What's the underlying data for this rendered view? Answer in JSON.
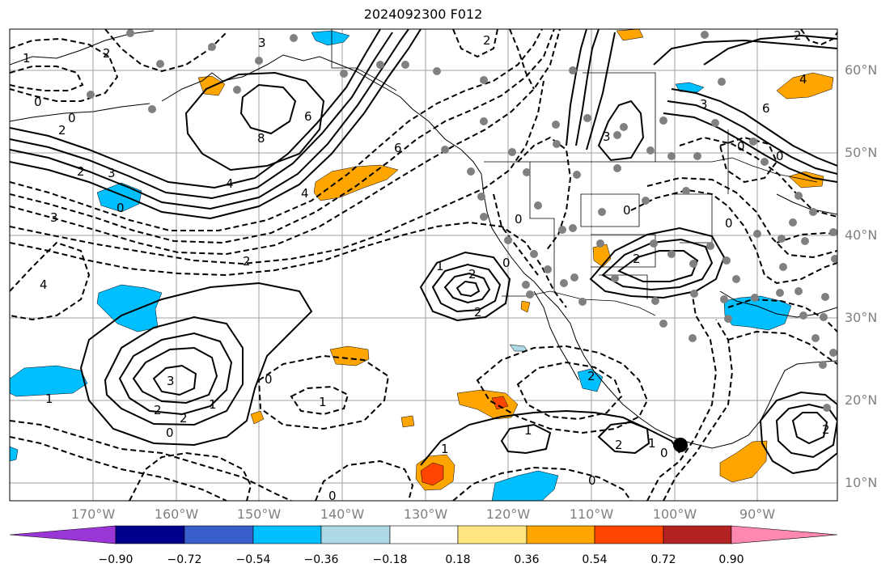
{
  "title": "2024092300 F012",
  "lat_labels": [
    "60°N",
    "50°N",
    "40°N",
    "30°N",
    "20°N",
    "10°N"
  ],
  "lon_labels": [
    "170°W",
    "160°W",
    "150°W",
    "140°W",
    "130°W",
    "120°W",
    "110°W",
    "100°W",
    "90°W"
  ],
  "colorbar": {
    "ticks": [
      "−0.90",
      "−0.72",
      "−0.54",
      "−0.36",
      "−0.18",
      "0.18",
      "0.36",
      "0.54",
      "0.72",
      "0.90"
    ],
    "colors": [
      "#9a36d6",
      "#00008b",
      "#3a5fcd",
      "#00bfff",
      "#add8e6",
      "#ffffff",
      "#ffe680",
      "#ffa500",
      "#ff4500",
      "#b22222",
      "#ff88b0"
    ]
  },
  "contour_labels": {
    "c1": "3",
    "c2": "2",
    "c3": "1",
    "c4": "0",
    "c5": "0",
    "c6": "2",
    "c7": "8",
    "c8": "6",
    "c9": "2",
    "c10": "3",
    "c11": "0",
    "c12": "4",
    "c13": "3",
    "c14": "4",
    "c15": "6",
    "c16": "4",
    "c17": "2",
    "c18": "2",
    "c19": "0",
    "c20": "1",
    "c21": "3",
    "c22": "2",
    "c23": "2",
    "c24": "1",
    "c25": "0",
    "c26": "1",
    "c27": "2",
    "c28": "0",
    "c29": "0",
    "c30": "1",
    "c31": "2",
    "c32": "1",
    "c33": "0",
    "c34": "0",
    "c35": "1",
    "c36": "0",
    "c37": "3",
    "c38": "2",
    "c39": "0",
    "c40": "2",
    "c41": "0",
    "c42": "6",
    "c43": "3",
    "c44": "0",
    "c45": "0",
    "c46": "4",
    "c47": "2",
    "c48": "2",
    "c49": "1",
    "c50": "2"
  }
}
